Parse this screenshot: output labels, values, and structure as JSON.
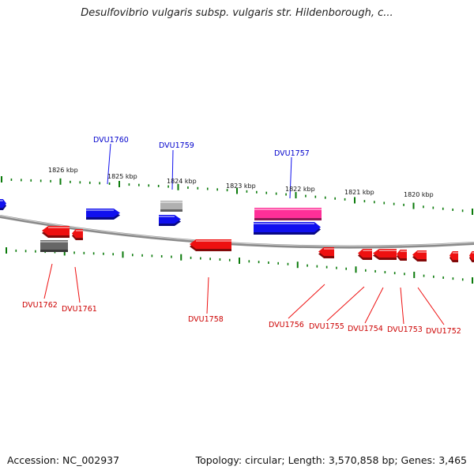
{
  "title": "Desulfovibrio vulgaris subsp. vulgaris str. Hildenborough, c...",
  "footer": {
    "accession": "Accession: NC_002937",
    "summary": "Topology: circular; Length: 3,570,858 bp; Genes: 3,465"
  },
  "colors": {
    "forward_gene": "#1010ee",
    "reverse_gene": "#ee1010",
    "highlight_gene": "#ff2f98",
    "pseudo_gene": "#b0b0b0",
    "dark_gene": "#666666",
    "backbone": "#8a8a8a",
    "tick": "#0a7a0a",
    "forward_label": "#0000cc",
    "reverse_label": "#cc0000"
  },
  "scale_labels": [
    "1826 kbp",
    "1825 kbp",
    "1824 kbp",
    "1823 kbp",
    "1822 kbp",
    "1821 kbp",
    "1820 kbp"
  ],
  "gene_labels": {
    "forward": [
      "DVU1760",
      "DVU1759",
      "DVU1757"
    ],
    "reverse": [
      "DVU1762",
      "DVU1761",
      "DVU1758",
      "DVU1756",
      "DVU1755",
      "DVU1754",
      "DVU1753",
      "DVU1752"
    ]
  }
}
